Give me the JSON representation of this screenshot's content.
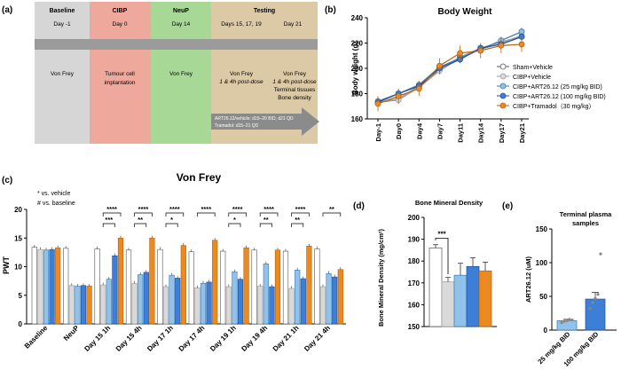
{
  "colors": {
    "baseline_bg": "#d6d6d6",
    "cibp_bg": "#efa89c",
    "neup_bg": "#a8d896",
    "testing_bg": "#dcc9a6",
    "band": "#9b9b9b",
    "arrow": "#8b8b8b",
    "sham": "#ffffff",
    "cibp": "#d9d9d9",
    "art25": "#8fc3ec",
    "art100": "#3d7fd6",
    "tramadol": "#ec8a22",
    "edge": "#555555"
  },
  "panel_a": {
    "label": "(a)",
    "phases": [
      {
        "title": "Baseline",
        "day": "Day -1",
        "desc": [
          "Von Frey"
        ]
      },
      {
        "title": "CIBP",
        "day": "Day 0",
        "desc": [
          "Tumour cell",
          "implantation"
        ]
      },
      {
        "title": "NeuP",
        "day": "Day 14",
        "desc": [
          "Von Frey"
        ]
      },
      {
        "title": "Testing",
        "days": [
          "Days 15, 17, 19",
          "Day 21"
        ],
        "desc1": [
          "Von Frey",
          "1 & 4h post-dose"
        ],
        "desc2": [
          "Von Frey",
          "1 & 4h post-dose",
          "Terminal tissues",
          "Bone density"
        ]
      }
    ],
    "arrow_text": [
      "ART26.12/vehicle: d15–20 BID, d21 QD",
      "Tramadol: d15–21 QD"
    ]
  },
  "panel_b": {
    "label": "(b)",
    "chart_data": {
      "type": "line",
      "title": "Body Weight",
      "xlabel": "",
      "ylabel": "Body weight (g)",
      "ylim": [
        160,
        240
      ],
      "yticks": [
        160,
        180,
        200,
        220,
        240
      ],
      "categories": [
        "Day-1",
        "Day0",
        "Day4",
        "Day7",
        "Day11",
        "Day14",
        "Day17",
        "Day21"
      ],
      "series": [
        {
          "name": "Sham+Vehicle",
          "values": [
            173,
            176,
            186,
            199,
            209,
            216,
            221,
            225
          ],
          "err": 3
        },
        {
          "name": "CIBP+Vehicle",
          "values": [
            173,
            175,
            185,
            198,
            208,
            215,
            220,
            226
          ],
          "err": 3
        },
        {
          "name": "CIBP+ART26.12 (25 mg/kg BID)",
          "values": [
            174,
            180,
            187,
            201,
            208,
            215,
            222,
            229
          ],
          "err": 3
        },
        {
          "name": "CIBP+ART26.12 (100 mg/kg BID)",
          "values": [
            173,
            180,
            186,
            200,
            207,
            216,
            219,
            225
          ],
          "err": 3
        },
        {
          "name": "CIBP+Tramadol（30 mg/kg）",
          "values": [
            172,
            178,
            184,
            202,
            212,
            214,
            218,
            219
          ],
          "err": 6
        }
      ]
    }
  },
  "panel_c": {
    "label": "(c)",
    "legend_notes": [
      "* vs. vehicle",
      "# vs. baseline"
    ],
    "chart_data": {
      "type": "bar",
      "title": "Von Frey",
      "ylabel": "PWT",
      "ylim": [
        0,
        20
      ],
      "yticks": [
        0,
        5,
        10,
        15,
        20
      ],
      "categories": [
        "Baseline",
        "NeuP",
        "Day 15 1h",
        "Day 15 4h",
        "Day 17 1h",
        "Day 17 4h",
        "Day 19 1h",
        "Day 19 4h",
        "Day 21 1h",
        "Day 21 4h"
      ],
      "series": [
        {
          "name": "Sham+Vehicle",
          "values": [
            13.4,
            13.2,
            13.1,
            12.9,
            13.0,
            12.6,
            12.7,
            12.9,
            12.7,
            13.1
          ]
        },
        {
          "name": "CIBP+Vehicle",
          "values": [
            13.0,
            6.7,
            6.8,
            7.1,
            6.5,
            6.3,
            6.5,
            6.6,
            6.2,
            6.5
          ]
        },
        {
          "name": "CIBP+ART26.12 (25 mg/kg BID)",
          "values": [
            12.9,
            6.6,
            7.8,
            8.6,
            8.5,
            7.1,
            9.1,
            10.5,
            9.4,
            8.8
          ]
        },
        {
          "name": "CIBP+ART26.12 (100 mg/kg BID)",
          "values": [
            13.0,
            6.7,
            11.9,
            9.0,
            8.0,
            7.3,
            7.8,
            6.5,
            7.9,
            8.2
          ]
        },
        {
          "name": "CIBP+Tramadol (30 mg/kg)",
          "values": [
            13.3,
            6.6,
            15.0,
            15.0,
            13.7,
            14.6,
            13.3,
            12.9,
            13.6,
            9.5
          ]
        }
      ],
      "significance": [
        {
          "group": "Day 15 1h",
          "upper": "****",
          "lower": "***"
        },
        {
          "group": "Day 15 4h",
          "upper": "****",
          "lower": "**"
        },
        {
          "group": "Day 17 1h",
          "upper": "****",
          "lower": "*"
        },
        {
          "group": "Day 17 4h",
          "upper": "****",
          "lower": ""
        },
        {
          "group": "Day 19 1h",
          "upper": "****",
          "lower": "*"
        },
        {
          "group": "Day 19 4h",
          "upper": "****",
          "lower": "**"
        },
        {
          "group": "Day 21 1h",
          "upper": "****",
          "lower": "**"
        },
        {
          "group": "Day 21 4h",
          "upper": "**",
          "lower": ""
        }
      ]
    }
  },
  "panel_d": {
    "label": "(d)",
    "chart_data": {
      "type": "bar",
      "title": "Bone Mineral Density",
      "ylabel": "Bone Mineral Density (mg/cm²)",
      "ylim": [
        150,
        200
      ],
      "yticks": [
        150,
        160,
        170,
        180,
        190,
        200
      ],
      "categories": [
        "Sham+Vehicle",
        "CIBP+Vehicle",
        "CIBP+ART26.12 (25 mg/kg BID)",
        "CIBP+ART26.12 (100 mg/kg BID)",
        "CIBP+Tramadol (30 mg/kg)"
      ],
      "values": [
        186,
        170.5,
        173.5,
        177.5,
        175.5
      ],
      "err": [
        1.5,
        2,
        5.5,
        4,
        4
      ],
      "significance": "***"
    }
  },
  "panel_e": {
    "label": "(e)",
    "chart_data": {
      "type": "bar",
      "title": "Terminal plasma samples",
      "ylabel": "ART26.12 (uM)",
      "ylim": [
        0,
        150
      ],
      "yticks": [
        0,
        50,
        100,
        150
      ],
      "categories": [
        "25 mg/kg BID",
        "100 mg/kg BID"
      ],
      "values": [
        14,
        46
      ],
      "err": [
        2,
        10
      ],
      "points": [
        [
          11,
          13,
          14,
          16,
          15
        ],
        [
          32,
          41,
          47,
          53,
          113
        ]
      ]
    }
  }
}
